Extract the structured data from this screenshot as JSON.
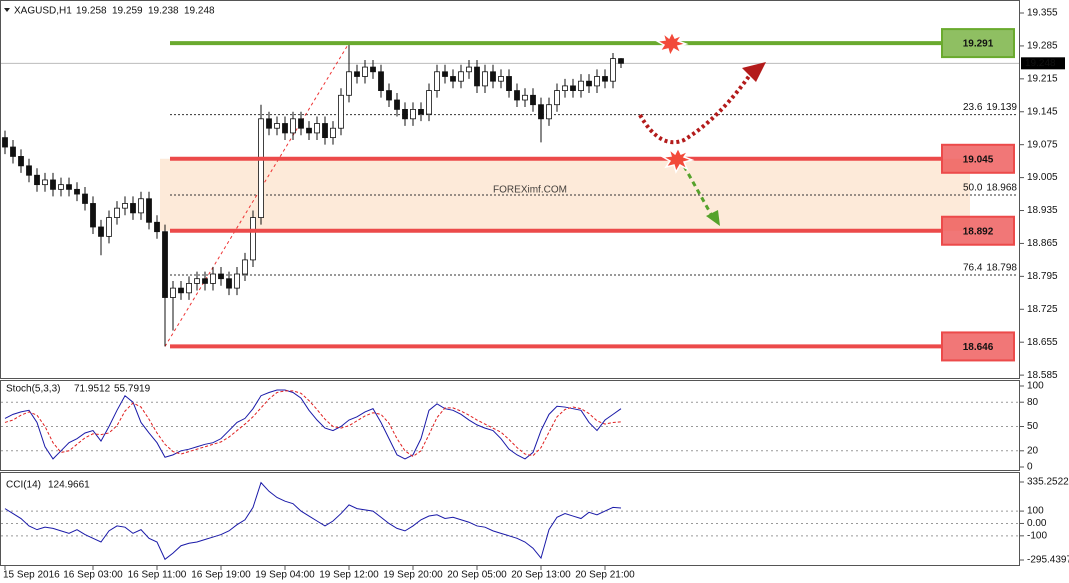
{
  "chart_data": [
    {
      "type": "candlestick",
      "title": "XAGUSD,H1",
      "watermark": "FOREXimf.COM",
      "categories": [
        "15 Sep 2016",
        null,
        null,
        null,
        null,
        null,
        null,
        null,
        null,
        null,
        null,
        "16 Sep 03:00",
        null,
        null,
        null,
        null,
        null,
        null,
        null,
        "16 Sep 11:00",
        null,
        null,
        null,
        null,
        null,
        null,
        null,
        "16 Sep 19:00",
        null,
        null,
        null,
        null,
        null,
        null,
        null,
        "19 Sep 04:00",
        null,
        null,
        null,
        null,
        null,
        null,
        null,
        "19 Sep 12:00",
        null,
        null,
        null,
        null,
        null,
        null,
        null,
        "19 Sep 20:00",
        null,
        null,
        null,
        null,
        null,
        null,
        null,
        "20 Sep 05:00",
        null,
        null,
        null,
        null,
        null,
        null,
        null,
        "20 Sep 13:00",
        null,
        null,
        null,
        null,
        null,
        null,
        null,
        "20 Sep 21:00",
        null,
        null
      ],
      "open": [
        19.09,
        19.07,
        19.05,
        19.03,
        19.01,
        18.99,
        19.0,
        18.98,
        18.99,
        18.98,
        18.97,
        18.95,
        18.9,
        18.88,
        18.92,
        18.94,
        18.95,
        18.93,
        18.96,
        18.91,
        18.89,
        18.75,
        18.77,
        18.76,
        18.78,
        18.79,
        18.78,
        18.8,
        18.79,
        18.77,
        18.8,
        18.83,
        18.92,
        19.13,
        19.11,
        19.12,
        19.1,
        19.13,
        19.11,
        19.1,
        19.12,
        19.09,
        19.11,
        19.18,
        19.23,
        19.22,
        19.24,
        19.23,
        19.19,
        19.17,
        19.15,
        19.13,
        19.15,
        19.14,
        19.19,
        19.23,
        19.22,
        19.21,
        19.23,
        19.24,
        19.2,
        19.23,
        19.21,
        19.22,
        19.19,
        19.17,
        19.18,
        19.16,
        19.13,
        19.16,
        19.19,
        19.2,
        19.19,
        19.21,
        19.2,
        19.22,
        19.21,
        19.258
      ],
      "high": [
        19.105,
        19.085,
        19.065,
        19.045,
        19.025,
        19.015,
        19.015,
        19.005,
        19.005,
        18.995,
        18.985,
        18.965,
        18.915,
        18.935,
        18.955,
        18.965,
        18.965,
        18.975,
        18.975,
        18.925,
        18.905,
        18.785,
        18.785,
        18.795,
        18.805,
        18.805,
        18.815,
        18.815,
        18.805,
        18.815,
        18.845,
        18.935,
        19.16,
        19.145,
        19.135,
        19.135,
        19.145,
        19.145,
        19.125,
        19.135,
        19.135,
        19.125,
        19.195,
        19.291,
        19.245,
        19.255,
        19.255,
        19.245,
        19.205,
        19.185,
        19.165,
        19.165,
        19.165,
        19.205,
        19.245,
        19.245,
        19.235,
        19.245,
        19.255,
        19.255,
        19.245,
        19.245,
        19.235,
        19.235,
        19.205,
        19.195,
        19.195,
        19.175,
        19.175,
        19.205,
        19.215,
        19.215,
        19.225,
        19.225,
        19.235,
        19.235,
        19.27,
        19.259
      ],
      "low": [
        19.055,
        19.035,
        19.015,
        18.995,
        18.975,
        18.975,
        18.965,
        18.965,
        18.965,
        18.955,
        18.935,
        18.885,
        18.84,
        18.865,
        18.905,
        18.925,
        18.915,
        18.915,
        18.895,
        18.875,
        18.646,
        18.68,
        18.745,
        18.745,
        18.765,
        18.765,
        18.765,
        18.775,
        18.755,
        18.755,
        18.785,
        18.815,
        18.905,
        19.095,
        19.095,
        19.085,
        19.085,
        19.095,
        19.085,
        19.085,
        19.075,
        19.075,
        19.095,
        19.165,
        19.205,
        19.205,
        19.215,
        19.175,
        19.155,
        19.135,
        19.115,
        19.115,
        19.125,
        19.125,
        19.175,
        19.205,
        19.195,
        19.195,
        19.215,
        19.185,
        19.185,
        19.195,
        19.195,
        19.175,
        19.155,
        19.155,
        19.145,
        19.08,
        19.115,
        19.145,
        19.175,
        19.175,
        19.175,
        19.185,
        19.185,
        19.195,
        19.195,
        19.238
      ],
      "close": [
        19.07,
        19.05,
        19.03,
        19.01,
        18.99,
        19.0,
        18.98,
        18.99,
        18.98,
        18.97,
        18.95,
        18.9,
        18.88,
        18.92,
        18.94,
        18.95,
        18.93,
        18.96,
        18.91,
        18.89,
        18.75,
        18.77,
        18.76,
        18.78,
        18.79,
        18.78,
        18.8,
        18.79,
        18.77,
        18.8,
        18.83,
        18.92,
        19.13,
        19.11,
        19.12,
        19.1,
        19.13,
        19.11,
        19.1,
        19.12,
        19.09,
        19.11,
        19.18,
        19.23,
        19.22,
        19.24,
        19.23,
        19.19,
        19.17,
        19.15,
        19.13,
        19.15,
        19.14,
        19.19,
        19.23,
        19.22,
        19.21,
        19.23,
        19.24,
        19.2,
        19.23,
        19.21,
        19.22,
        19.19,
        19.17,
        19.18,
        19.16,
        19.13,
        19.16,
        19.19,
        19.2,
        19.19,
        19.21,
        19.2,
        19.22,
        19.21,
        19.258,
        19.248
      ],
      "ylim": [
        18.581,
        19.372
      ],
      "yticks": [
        19.355,
        19.285,
        19.215,
        19.145,
        19.075,
        19.005,
        18.935,
        18.865,
        18.795,
        18.725,
        18.655,
        18.585
      ],
      "levels": [
        {
          "value": 19.291,
          "color": "#6aaa2e"
        },
        {
          "value": 19.045,
          "color": "#ec4a4a"
        },
        {
          "value": 18.892,
          "color": "#ec4a4a"
        },
        {
          "value": 18.646,
          "color": "#ec4a4a"
        }
      ],
      "fib_levels": [
        {
          "label": "23.6",
          "price": 19.139
        },
        {
          "label": "50.0",
          "price": 18.968
        },
        {
          "label": "76.4",
          "price": 18.798
        }
      ]
    },
    {
      "type": "line",
      "title": "Stoch(5,3,3)",
      "series": [
        {
          "color": "#1a1aa8",
          "values": [
            60,
            65,
            68,
            70,
            55,
            25,
            10,
            20,
            30,
            35,
            42,
            45,
            32,
            50,
            70,
            88,
            80,
            55,
            42,
            30,
            12,
            15,
            20,
            22,
            25,
            28,
            30,
            35,
            45,
            55,
            60,
            72,
            88,
            92,
            95,
            95,
            92,
            85,
            70,
            58,
            48,
            45,
            50,
            58,
            62,
            68,
            72,
            55,
            35,
            15,
            10,
            15,
            35,
            70,
            78,
            72,
            70,
            65,
            58,
            52,
            48,
            45,
            35,
            22,
            15,
            10,
            18,
            45,
            65,
            75,
            74,
            72,
            70,
            55,
            45,
            58,
            65,
            71.9512
          ]
        },
        {
          "color": "#e02020",
          "dashed": true,
          "values": [
            55,
            58,
            64,
            68,
            64,
            50,
            30,
            18,
            20,
            28,
            36,
            41,
            40,
            42,
            51,
            69,
            79,
            74,
            59,
            42,
            28,
            19,
            16,
            19,
            22,
            25,
            28,
            31,
            37,
            45,
            53,
            62,
            73,
            84,
            92,
            94,
            94,
            91,
            82,
            71,
            59,
            50,
            48,
            51,
            57,
            63,
            67,
            65,
            54,
            35,
            20,
            13,
            20,
            40,
            61,
            73,
            73,
            69,
            64,
            58,
            53,
            48,
            43,
            34,
            24,
            16,
            14,
            24,
            43,
            62,
            71,
            74,
            72,
            66,
            57,
            53,
            55,
            55.7919
          ]
        }
      ],
      "ylim": [
        0,
        100
      ],
      "yticks": [
        100,
        80,
        50,
        20,
        0
      ]
    },
    {
      "type": "line",
      "title": "CCI(14)",
      "series": [
        {
          "color": "#1a1aa8",
          "values": [
            120,
            80,
            40,
            -20,
            -50,
            -30,
            -40,
            -60,
            -80,
            -50,
            -90,
            -120,
            -150,
            -60,
            -20,
            -30,
            -80,
            -50,
            -120,
            -150,
            -290,
            -240,
            -180,
            -160,
            -150,
            -130,
            -110,
            -90,
            -60,
            -10,
            30,
            130,
            330,
            260,
            210,
            180,
            160,
            100,
            60,
            20,
            -20,
            20,
            80,
            150,
            120,
            110,
            100,
            50,
            0,
            -40,
            -60,
            -20,
            30,
            60,
            70,
            40,
            50,
            30,
            10,
            -20,
            -30,
            -60,
            -80,
            -100,
            -120,
            -150,
            -200,
            -280,
            -50,
            50,
            80,
            60,
            40,
            90,
            70,
            100,
            130,
            124.9661
          ]
        }
      ],
      "ylim": [
        -295.4397,
        335.2522
      ],
      "yticks": [
        335.2522,
        100,
        {
          "value": 0,
          "label": "0.00"
        },
        -100,
        -295.4397
      ]
    }
  ]
}
